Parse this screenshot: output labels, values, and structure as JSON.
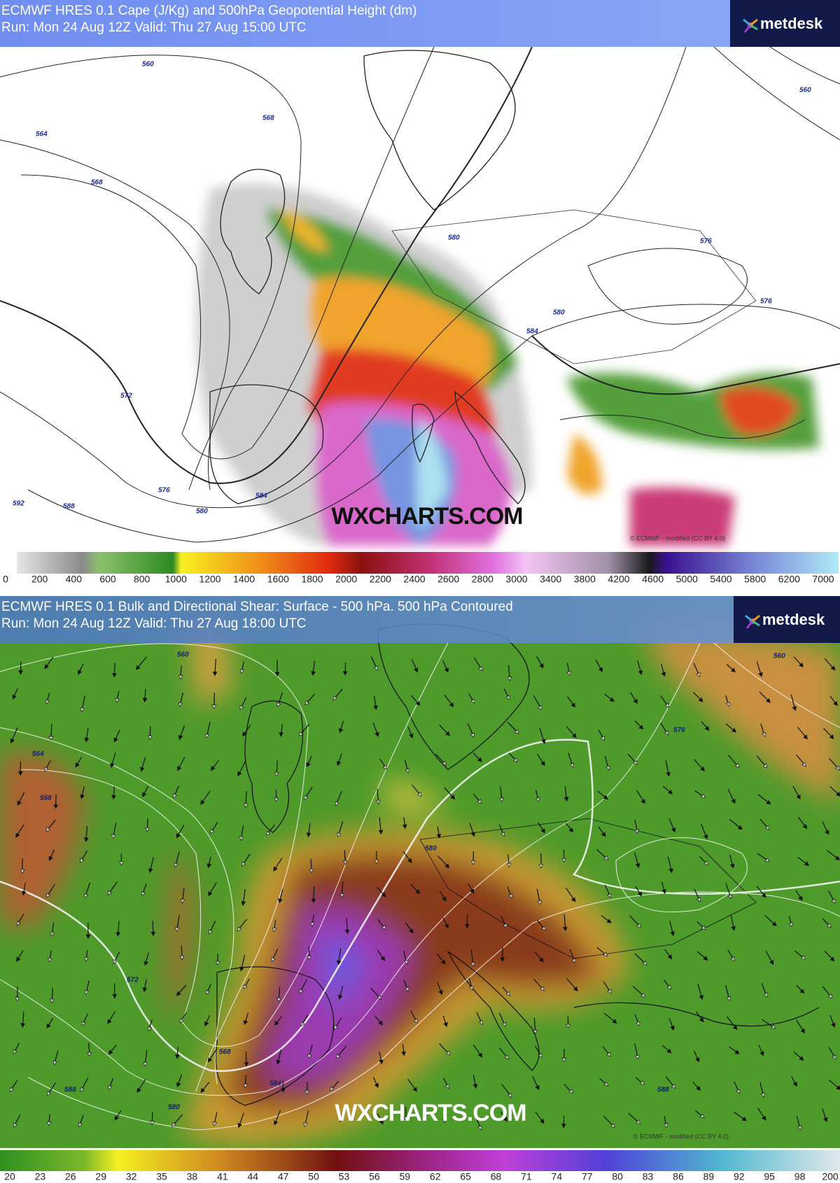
{
  "panels": [
    {
      "title": "ECMWF HRES 0.1 Cape (J/Kg) and 500hPa Geopotential Height (dm)",
      "run": "Run: Mon 24 Aug 12Z Valid: Thu 27 Aug 15:00 UTC",
      "logo": "metdesk",
      "watermark": "WXCHARTS.COM",
      "copyright": "© ECMWF - modified (CC BY 4.0)",
      "contour_labels": [
        560,
        564,
        568,
        568,
        572,
        576,
        580,
        584,
        588,
        592,
        576,
        576,
        580,
        560,
        584,
        580
      ],
      "colorbar_labels": [
        0,
        200,
        400,
        600,
        800,
        1000,
        1200,
        1400,
        1600,
        1800,
        2000,
        2200,
        2400,
        2600,
        2800,
        3000,
        3400,
        3800,
        4200,
        4600,
        5000,
        5400,
        5800,
        6200,
        7000
      ]
    },
    {
      "title": "ECMWF HRES 0.1 Bulk and Directional Shear: Surface - 500 hPa. 500 hPa Contoured",
      "run": "Run: Mon 24 Aug 12Z Valid: Thu 27 Aug 18:00 UTC",
      "logo": "metdesk",
      "watermark": "WXCHARTS.COM",
      "copyright": "© ECMWF - modified (CC BY 4.0)",
      "contour_labels": [
        560,
        564,
        568,
        572,
        576,
        580,
        580,
        584,
        588,
        560,
        568,
        588
      ],
      "colorbar_labels": [
        20,
        23,
        26,
        29,
        32,
        35,
        38,
        41,
        44,
        47,
        50,
        53,
        56,
        59,
        62,
        65,
        68,
        71,
        74,
        77,
        80,
        83,
        86,
        89,
        92,
        95,
        98,
        200
      ]
    }
  ]
}
